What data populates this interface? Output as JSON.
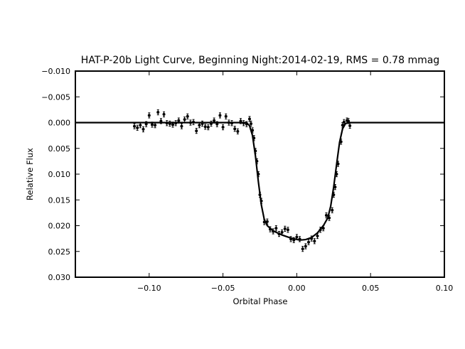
{
  "chart_data": {
    "type": "scatter",
    "title": "HAT-P-20b Light Curve, Beginning Night:2014-02-19, RMS = 0.78 mmag",
    "xlabel": "Orbital Phase",
    "ylabel": "Relative Flux",
    "xlim": [
      -0.15,
      0.1
    ],
    "ylim": [
      0.03,
      -0.01
    ],
    "y_inverted": true,
    "grid": false,
    "x_ticks": [
      -0.1,
      -0.05,
      0.0,
      0.05,
      0.1
    ],
    "x_tick_labels": [
      "−0.10",
      "−0.05",
      "0.00",
      "0.05",
      "0.10"
    ],
    "y_ticks": [
      -0.01,
      -0.005,
      0.0,
      0.005,
      0.01,
      0.015,
      0.02,
      0.025,
      0.03
    ],
    "y_tick_labels": [
      "−0.010",
      "−0.005",
      "0.000",
      "0.005",
      "0.010",
      "0.015",
      "0.020",
      "0.025",
      "0.030"
    ],
    "series": [
      {
        "kind": "errorbar-points",
        "color": "#000000",
        "yerr": 0.0005,
        "points": [
          [
            -0.11,
            0.0007
          ],
          [
            -0.108,
            0.001
          ],
          [
            -0.106,
            0.0005
          ],
          [
            -0.104,
            0.0013
          ],
          [
            -0.102,
            0.0003
          ],
          [
            -0.1,
            -0.0014
          ],
          [
            -0.098,
            0.0004
          ],
          [
            -0.096,
            0.0005
          ],
          [
            -0.094,
            -0.002
          ],
          [
            -0.092,
            -0.0003
          ],
          [
            -0.09,
            -0.0016
          ],
          [
            -0.088,
            0.0001
          ],
          [
            -0.086,
            0.0002
          ],
          [
            -0.084,
            0.0004
          ],
          [
            -0.082,
            0.0001
          ],
          [
            -0.08,
            -0.0004
          ],
          [
            -0.078,
            0.0007
          ],
          [
            -0.076,
            -0.0006
          ],
          [
            -0.074,
            -0.0012
          ],
          [
            -0.072,
            0.0
          ],
          [
            -0.07,
            -0.0001
          ],
          [
            -0.068,
            0.0016
          ],
          [
            -0.066,
            0.0005
          ],
          [
            -0.064,
            0.0002
          ],
          [
            -0.062,
            0.0008
          ],
          [
            -0.06,
            0.0009
          ],
          [
            -0.058,
            0.0002
          ],
          [
            -0.056,
            -0.0004
          ],
          [
            -0.054,
            0.0003
          ],
          [
            -0.052,
            -0.0014
          ],
          [
            -0.05,
            0.0009
          ],
          [
            -0.048,
            -0.0012
          ],
          [
            -0.046,
            0.0
          ],
          [
            -0.044,
            0.0001
          ],
          [
            -0.042,
            0.0012
          ],
          [
            -0.04,
            0.0017
          ],
          [
            -0.038,
            -0.0003
          ],
          [
            -0.036,
            0.0001
          ],
          [
            -0.034,
            0.0003
          ],
          [
            -0.032,
            -0.0007
          ],
          [
            -0.031,
            0.0002
          ],
          [
            -0.03,
            0.0015
          ],
          [
            -0.029,
            0.003
          ],
          [
            -0.028,
            0.0055
          ],
          [
            -0.027,
            0.0075
          ],
          [
            -0.026,
            0.01
          ],
          [
            -0.025,
            0.014
          ],
          [
            -0.024,
            0.0152
          ],
          [
            -0.022,
            0.0193
          ],
          [
            -0.02,
            0.0192
          ],
          [
            -0.018,
            0.0207
          ],
          [
            -0.016,
            0.0211
          ],
          [
            -0.014,
            0.0205
          ],
          [
            -0.012,
            0.0216
          ],
          [
            -0.01,
            0.0213
          ],
          [
            -0.008,
            0.0206
          ],
          [
            -0.006,
            0.0208
          ],
          [
            -0.004,
            0.0226
          ],
          [
            -0.002,
            0.0228
          ],
          [
            0.0,
            0.0222
          ],
          [
            0.002,
            0.0226
          ],
          [
            0.004,
            0.0245
          ],
          [
            0.006,
            0.024
          ],
          [
            0.008,
            0.0232
          ],
          [
            0.01,
            0.0225
          ],
          [
            0.012,
            0.023
          ],
          [
            0.014,
            0.022
          ],
          [
            0.016,
            0.0208
          ],
          [
            0.018,
            0.0205
          ],
          [
            0.02,
            0.018
          ],
          [
            0.022,
            0.0185
          ],
          [
            0.024,
            0.017
          ],
          [
            0.025,
            0.014
          ],
          [
            0.026,
            0.0125
          ],
          [
            0.027,
            0.01
          ],
          [
            0.028,
            0.008
          ],
          [
            0.03,
            0.0037
          ],
          [
            0.031,
            0.0005
          ],
          [
            0.032,
            -0.0001
          ],
          [
            0.034,
            -0.0004
          ],
          [
            0.035,
            -0.0003
          ],
          [
            0.036,
            0.0006
          ]
        ]
      },
      {
        "kind": "model-line",
        "color": "#000000",
        "points": [
          [
            -0.15,
            0.0
          ],
          [
            -0.034,
            0.0
          ],
          [
            -0.032,
            0.0006
          ],
          [
            -0.03,
            0.0025
          ],
          [
            -0.028,
            0.0065
          ],
          [
            -0.026,
            0.0115
          ],
          [
            -0.024,
            0.016
          ],
          [
            -0.022,
            0.0188
          ],
          [
            -0.02,
            0.02
          ],
          [
            -0.016,
            0.021
          ],
          [
            -0.01,
            0.0218
          ],
          [
            -0.004,
            0.0224
          ],
          [
            0.002,
            0.0228
          ],
          [
            0.006,
            0.0227
          ],
          [
            0.01,
            0.0223
          ],
          [
            0.014,
            0.0214
          ],
          [
            0.018,
            0.02
          ],
          [
            0.021,
            0.0185
          ],
          [
            0.023,
            0.0162
          ],
          [
            0.025,
            0.0125
          ],
          [
            0.027,
            0.008
          ],
          [
            0.029,
            0.0038
          ],
          [
            0.031,
            0.0012
          ],
          [
            0.033,
            0.0002
          ],
          [
            0.035,
            0.0
          ],
          [
            0.1,
            0.0
          ]
        ]
      }
    ]
  }
}
